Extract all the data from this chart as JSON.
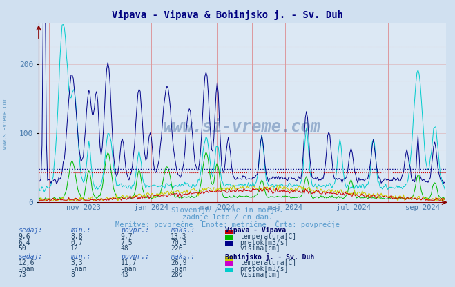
{
  "title": "Vipava - Vipava & Bohinjsko j. - Sv. Duh",
  "title_color": "#000080",
  "background_color": "#d0e0f0",
  "plot_bg_color": "#dce8f4",
  "grid_color_v": "#ff8888",
  "grid_color_h": "#cc8888",
  "grid_minor_color": "#ddcccc",
  "ylabel": "",
  "ylim": [
    0,
    260
  ],
  "yticks": [
    0,
    100,
    200
  ],
  "subtitle1": "Slovenija / reke in morje.",
  "subtitle2": "zadnje leto / en dan.",
  "subtitle3": "Meritve: povprečne  Enote: metrične  Črta: povprečje",
  "subtitle_color": "#5599cc",
  "watermark": "www.si-vreme.com",
  "watermark_color": "#1a4a8a",
  "xaxis_label_color": "#4477aa",
  "xtick_labels": [
    "nov 2023",
    "jan 2024",
    "mar 2024",
    "maj 2024",
    "jul 2024",
    "sep 2024"
  ],
  "avg_line_color1": "#000088",
  "avg_line_color2": "#cc0000",
  "avg_line_value1": 48,
  "avg_line_value2": 43,
  "station1_name": "Vipava - Vipava",
  "station2_name": "Bohinjsko j. - Sv. Duh",
  "station1_temp_color": "#cc0000",
  "station1_flow_color": "#00bb00",
  "station1_height_color": "#000088",
  "station2_temp_color": "#cccc00",
  "station2_flow_color": "#cc00cc",
  "station2_height_color": "#00cccc",
  "table_header_color": "#3366bb",
  "table_value_color": "#224466",
  "legend_title_color": "#000066",
  "s1_sedaj": [
    9.6,
    6.4,
    50
  ],
  "s1_min": [
    8.8,
    0.7,
    12
  ],
  "s1_povpr": [
    9.7,
    7.5,
    48
  ],
  "s1_maks": [
    13.3,
    70.3,
    226
  ],
  "s2_sedaj": [
    12.6,
    "-nan",
    73
  ],
  "s2_min": [
    3.3,
    "-nan",
    8
  ],
  "s2_povpr": [
    11.7,
    "-nan",
    43
  ],
  "s2_maks": [
    26.9,
    "-nan",
    280
  ],
  "arrow_color": "#660000",
  "num_points": 365,
  "logo_color": "#4488bb"
}
